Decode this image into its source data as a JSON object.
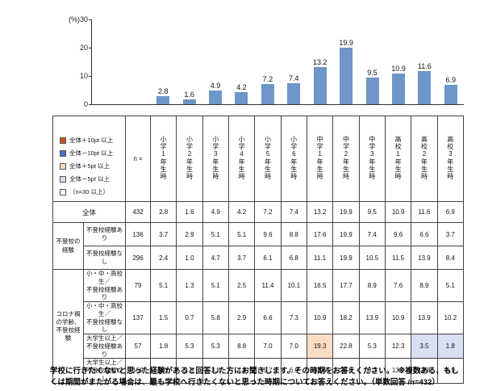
{
  "chart_data": {
    "type": "bar",
    "title": "",
    "unit_label": "(%)",
    "categories": [
      "小学1年生時",
      "小学2年生時",
      "小学3年生時",
      "小学4年生時",
      "小学5年生時",
      "小学6年生時",
      "中学1年生時",
      "中学2年生時",
      "中学3年生時",
      "高校1年生時",
      "高校2年生時",
      "高校3年生時"
    ],
    "values": [
      2.8,
      1.6,
      4.9,
      4.2,
      7.2,
      7.4,
      13.2,
      19.9,
      9.5,
      10.9,
      11.6,
      6.9
    ],
    "xlabel": "",
    "ylabel": "(%)",
    "ylim": [
      0,
      30
    ],
    "yticks": [
      30,
      20,
      10,
      0
    ],
    "grid": false,
    "value_labels": true,
    "bar_color": "#6e96c8",
    "legend_position": "table-top-left"
  },
  "legend": {
    "items": [
      {
        "key": "plus10",
        "label": "全体＋10pt 以上",
        "color": "#c0571c"
      },
      {
        "key": "minus10",
        "label": "全体－10pt 以上",
        "color": "#4472c4"
      },
      {
        "key": "plus5",
        "label": "全体＋5pt 以上",
        "color": "#f8dcc3"
      },
      {
        "key": "minus5",
        "label": "全体－5pt 以上",
        "color": "#d9def0"
      },
      {
        "key": "n30",
        "label": "（n=30 以上）",
        "color": "#ffffff"
      }
    ]
  },
  "highlight_colors": {
    "plus10": "#c0571c",
    "minus10": "#4472c4",
    "plus5": "#f8dcc3",
    "minus5": "#d9def0"
  },
  "table": {
    "n_label": "n =",
    "columns": [
      "小学1年生時",
      "小学2年生時",
      "小学3年生時",
      "小学4年生時",
      "小学5年生時",
      "小学6年生時",
      "中学1年生時",
      "中学2年生時",
      "中学3年生時",
      "高校1年生時",
      "高校2年生時",
      "高校3年生時"
    ],
    "rows": [
      {
        "label": "全体",
        "total": true,
        "n": "432",
        "values": [
          "2.8",
          "1.6",
          "4.9",
          "4.2",
          "7.2",
          "7.4",
          "13.2",
          "19.9",
          "9.5",
          "10.9",
          "11.6",
          "6.9"
        ]
      },
      {
        "group": "不登校の経験",
        "group_span": 2,
        "label": "不登校経験あり",
        "n": "136",
        "values": [
          "3.7",
          "2.9",
          "5.1",
          "5.1",
          "9.6",
          "8.8",
          "17.6",
          "19.9",
          "7.4",
          "9.6",
          "6.6",
          "3.7"
        ]
      },
      {
        "label": "不登校経験なし",
        "n": "296",
        "values": [
          "2.4",
          "1.0",
          "4.7",
          "3.7",
          "6.1",
          "6.8",
          "11.1",
          "19.9",
          "10.5",
          "11.5",
          "13.9",
          "8.4"
        ]
      },
      {
        "group": "コロナ禍の学齢、不登校経験",
        "group_span": 4,
        "label": "小・中・高校生／不登校経験あり",
        "n": "79",
        "values": [
          "5.1",
          "1.3",
          "5.1",
          "2.5",
          "11.4",
          "10.1",
          "16.5",
          "17.7",
          "8.9",
          "7.6",
          "8.9",
          "5.1"
        ]
      },
      {
        "label": "小・中・高校生／不登校経験なし",
        "n": "137",
        "values": [
          "1.5",
          "0.7",
          "5.8",
          "2.9",
          "6.6",
          "7.3",
          "10.9",
          "18.2",
          "13.9",
          "10.9",
          "13.9",
          "10.2"
        ]
      },
      {
        "label": "大学生以上／不登校経験あり",
        "n": "57",
        "values": [
          "1.8",
          "5.3",
          "5.3",
          "8.8",
          "7.0",
          "7.0",
          "19.3",
          "22.8",
          "5.3",
          "12.3",
          "3.5",
          "1.8"
        ],
        "highlights": {
          "6": "plus5",
          "10": "minus5",
          "11": "minus5"
        }
      },
      {
        "label": "大学生以上／不登校経験なし",
        "n": "159",
        "values": [
          "3.1",
          "1.3",
          "3.8",
          "4.4",
          "5.7",
          "6.9",
          "12.6",
          "20.8",
          "8.2",
          "13.2",
          "13.8",
          "6.9"
        ]
      }
    ]
  },
  "footnote": {
    "text": "学校に行きたくないと思った経験があると回答した方にお聞きします。その時期をお答えください。　※複数ある、もしくは期間がまたがる場合は、最も学校へ行きたくないと思った時期についてお答えください。（単数回答 /n=432）"
  }
}
